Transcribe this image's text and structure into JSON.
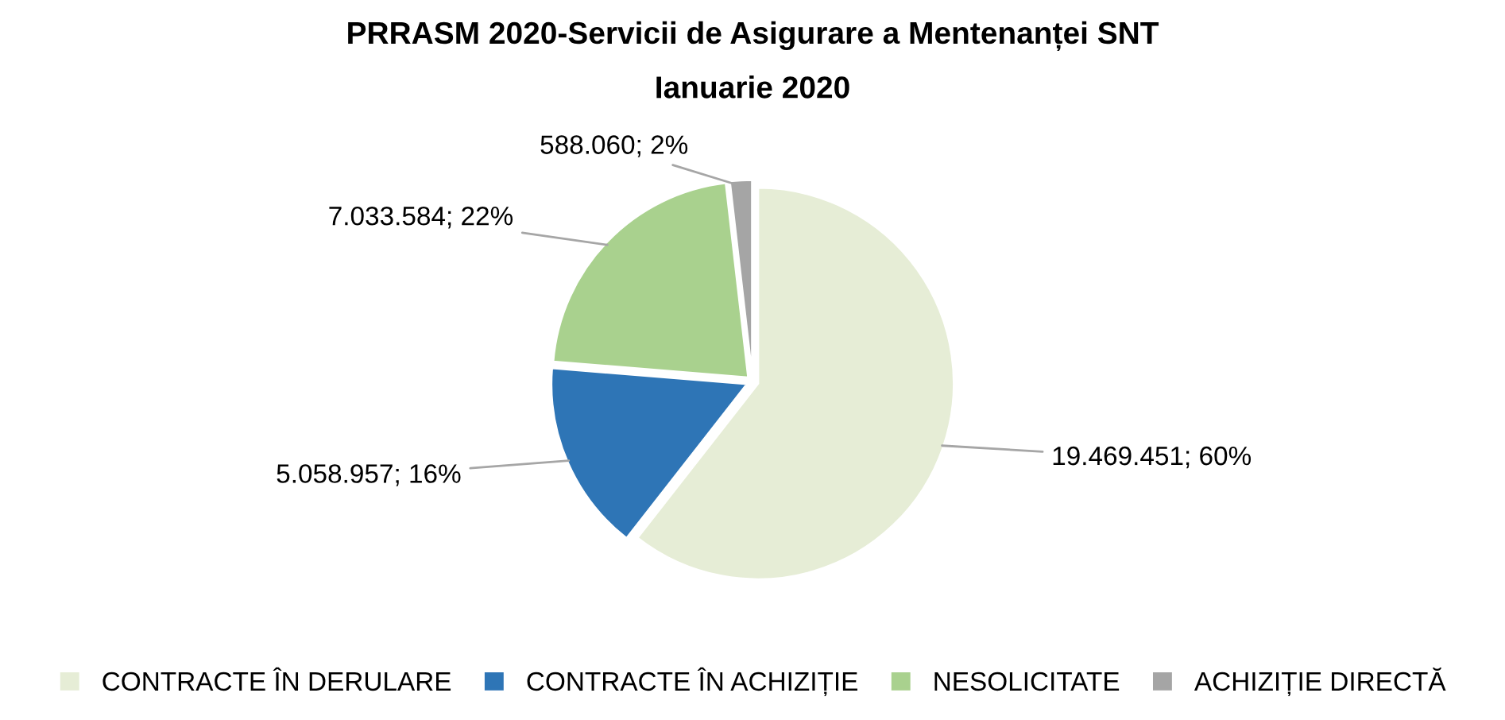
{
  "chart_data": {
    "type": "pie",
    "title": "PRRASM 2020-Servicii de Asigurare a Mentenanței SNT",
    "subtitle": "Ianuarie 2020",
    "categories": [
      "CONTRACTE ÎN DERULARE",
      "CONTRACTE ÎN ACHIZIȚIE",
      "NESOLICITATE",
      "ACHIZIȚIE DIRECTĂ"
    ],
    "values": [
      19469451,
      5058957,
      7033584,
      588060
    ],
    "value_labels": [
      "19.469.451; 60%",
      "5.058.957; 16%",
      "7.033.584; 22%",
      "588.060; 2%"
    ],
    "colors": [
      "#e6edd6",
      "#2e75b6",
      "#a9d18e",
      "#a5a5a5"
    ],
    "legend": "bottom"
  }
}
